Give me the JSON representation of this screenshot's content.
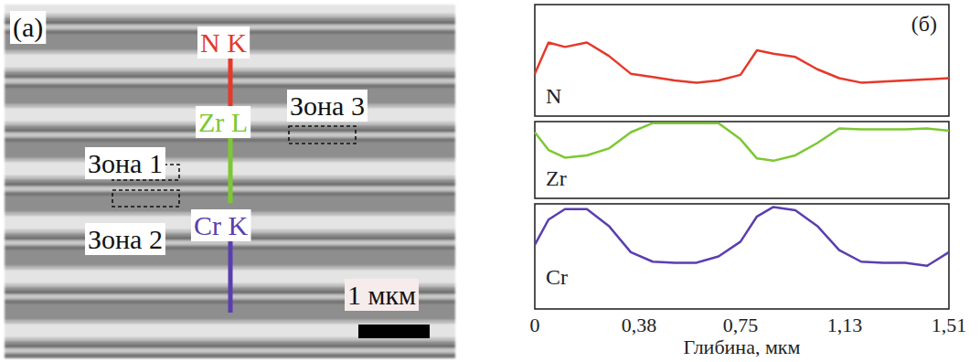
{
  "panel_a": {
    "letter": "(a)",
    "line_labels": [
      "N K",
      "Zr L",
      "Cr K"
    ],
    "zones": [
      "Зона 1",
      "Зона 2",
      "Зона 3"
    ],
    "scale_bar": "1 мкм"
  },
  "chart_data": {
    "type": "line",
    "letter": "(б)",
    "xlabel": "Глибина, мкм",
    "x": [
      0,
      0.05,
      0.11,
      0.19,
      0.27,
      0.35,
      0.43,
      0.51,
      0.59,
      0.67,
      0.75,
      0.81,
      0.87,
      0.95,
      1.03,
      1.11,
      1.19,
      1.27,
      1.35,
      1.43,
      1.51
    ],
    "series": [
      {
        "name": "N",
        "color": "#e5392b",
        "values": [
          0.38,
          0.66,
          0.62,
          0.66,
          0.54,
          0.38,
          0.35,
          0.32,
          0.3,
          0.32,
          0.37,
          0.59,
          0.56,
          0.53,
          0.42,
          0.34,
          0.3,
          0.31,
          0.32,
          0.33,
          0.34
        ]
      },
      {
        "name": "Zr",
        "color": "#7cc832",
        "values": [
          0.86,
          0.63,
          0.53,
          0.56,
          0.65,
          0.86,
          0.98,
          0.98,
          0.98,
          0.98,
          0.77,
          0.52,
          0.49,
          0.56,
          0.72,
          0.91,
          0.9,
          0.9,
          0.9,
          0.91,
          0.88
        ]
      },
      {
        "name": "Cr",
        "color": "#5a3eb0",
        "values": [
          0.61,
          0.85,
          0.95,
          0.95,
          0.79,
          0.54,
          0.45,
          0.44,
          0.44,
          0.5,
          0.64,
          0.88,
          0.97,
          0.94,
          0.79,
          0.56,
          0.45,
          0.44,
          0.44,
          0.41,
          0.54
        ]
      }
    ],
    "xlim": [
      0,
      1.51
    ],
    "xticks": [
      0,
      {
        "value": 0.38,
        "label": "0,38"
      },
      {
        "value": 0.75,
        "label": "0,75"
      },
      {
        "value": 1.13,
        "label": "1,13"
      },
      {
        "value": 1.51,
        "label": "1,51"
      }
    ],
    "ylim": [
      0,
      1
    ],
    "tick_labels": "x",
    "grid": false
  }
}
